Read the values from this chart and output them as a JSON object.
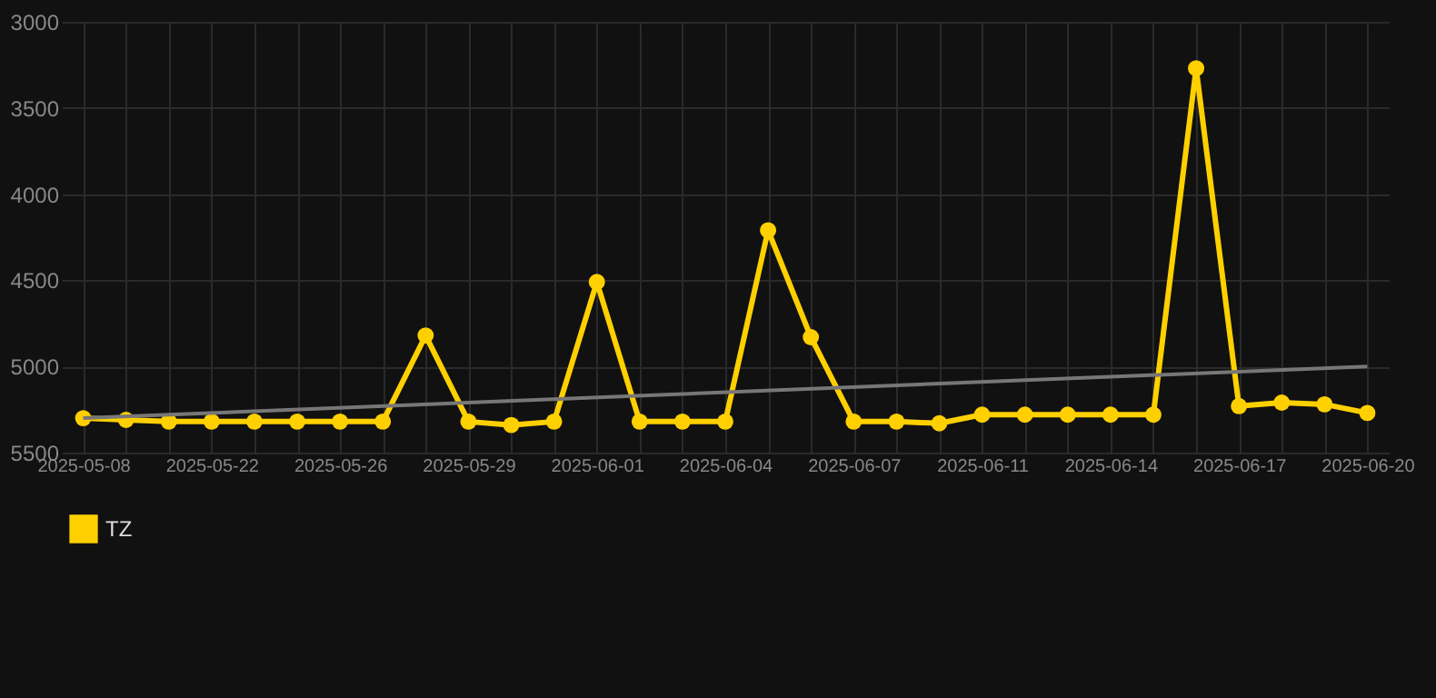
{
  "chart_data": {
    "type": "line",
    "categories": [
      "2025-05-08",
      null,
      null,
      "2025-05-22",
      null,
      null,
      "2025-05-26",
      null,
      null,
      "2025-05-29",
      null,
      null,
      "2025-06-01",
      null,
      null,
      "2025-06-04",
      null,
      null,
      "2025-06-07",
      null,
      null,
      "2025-06-11",
      null,
      null,
      "2025-06-14",
      null,
      null,
      "2025-06-17",
      null,
      null,
      "2025-06-20"
    ],
    "series": [
      {
        "name": "TZ",
        "color": "#ffd000",
        "values": [
          5300,
          5310,
          5320,
          5320,
          5320,
          5320,
          5320,
          5320,
          4820,
          5320,
          5340,
          5320,
          4510,
          5320,
          5320,
          5320,
          4210,
          4830,
          5320,
          5320,
          5330,
          5280,
          5280,
          5280,
          5280,
          5280,
          3270,
          5230,
          5210,
          5220,
          5270
        ]
      },
      {
        "type": "line",
        "color": "#777777",
        "marker": "none",
        "values": [
          5300,
          null,
          null,
          null,
          null,
          null,
          null,
          null,
          null,
          null,
          null,
          null,
          null,
          null,
          null,
          null,
          null,
          null,
          null,
          null,
          null,
          null,
          null,
          null,
          null,
          null,
          null,
          null,
          null,
          null,
          5000
        ]
      }
    ],
    "ylim": [
      5500,
      3000
    ],
    "yticks": [
      3000,
      3500,
      4000,
      4500,
      5000,
      5500
    ],
    "grid": true,
    "legend": "bottom",
    "marker": "circle",
    "line_style": "solid"
  }
}
